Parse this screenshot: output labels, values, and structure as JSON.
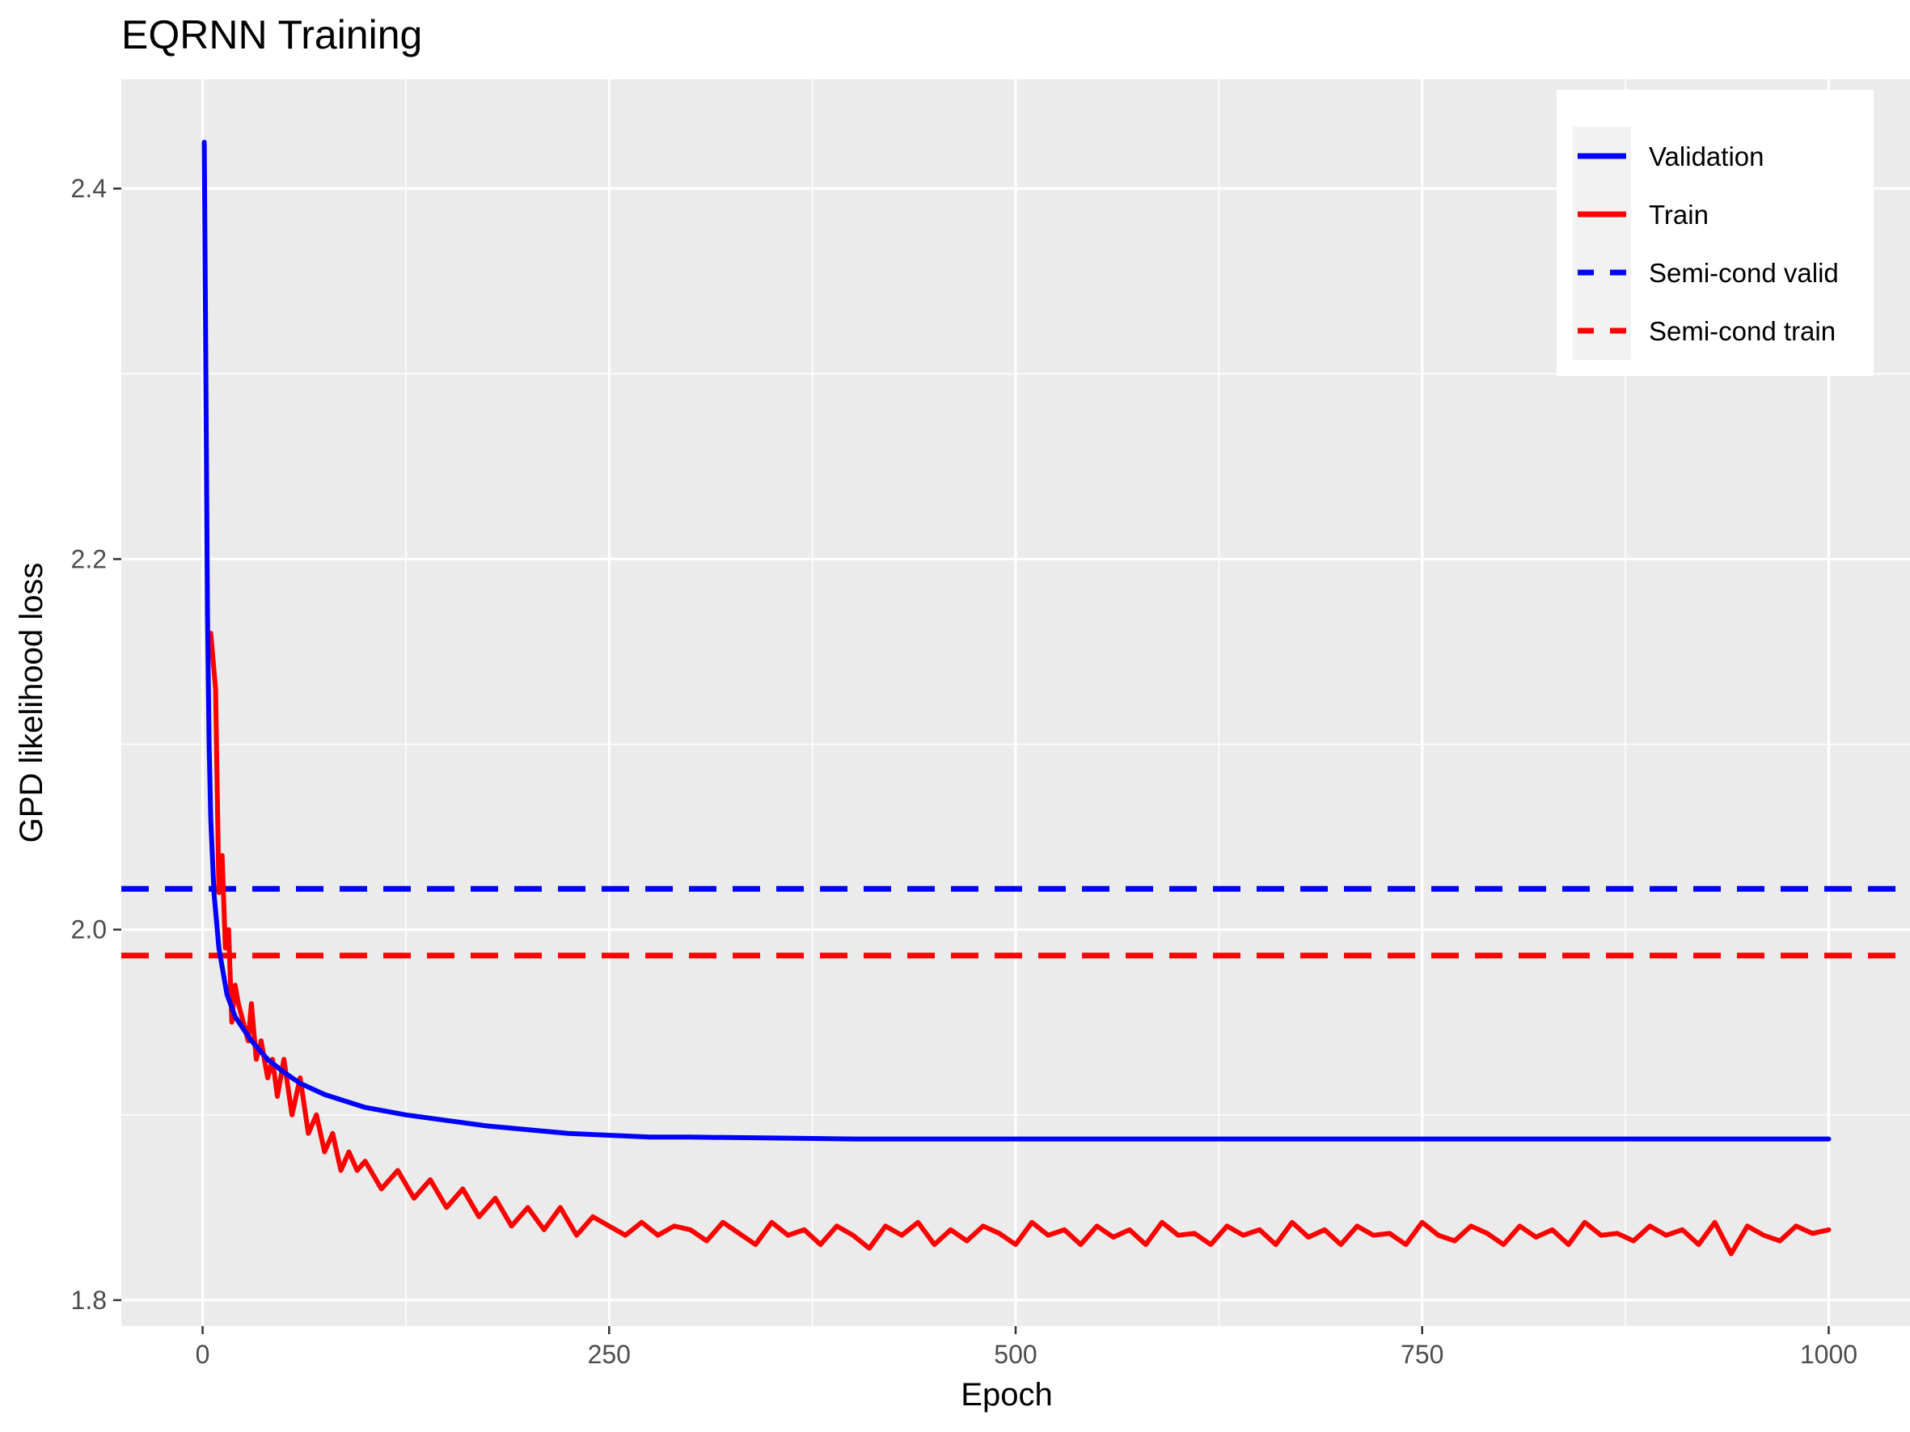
{
  "chart_data": {
    "type": "line",
    "title": "EQRNN Training",
    "xlabel": "Epoch",
    "ylabel": "GPD likelihood loss",
    "xlim": [
      -50,
      1050
    ],
    "ylim": [
      1.786,
      2.459
    ],
    "x_ticks": [
      0,
      250,
      500,
      750,
      1000
    ],
    "x_tick_labels": [
      "0",
      "250",
      "500",
      "750",
      "1000"
    ],
    "y_ticks": [
      1.8,
      2.0,
      2.2,
      2.4
    ],
    "y_tick_labels": [
      "1.8",
      "2.0",
      "2.2",
      "2.4"
    ],
    "grid": true,
    "legend_position": "top-right",
    "series": [
      {
        "name": "Validation",
        "color": "#0000ff",
        "style": "solid",
        "x": [
          1,
          2,
          3,
          4,
          5,
          7,
          10,
          15,
          20,
          30,
          40,
          50,
          60,
          75,
          100,
          125,
          150,
          175,
          200,
          225,
          250,
          275,
          300,
          350,
          400,
          450,
          500,
          600,
          700,
          800,
          900,
          1000
        ],
        "y": [
          2.425,
          2.3,
          2.17,
          2.1,
          2.06,
          2.02,
          1.99,
          1.965,
          1.953,
          1.94,
          1.93,
          1.923,
          1.917,
          1.911,
          1.904,
          1.9,
          1.897,
          1.894,
          1.892,
          1.89,
          1.889,
          1.888,
          1.888,
          1.8875,
          1.887,
          1.887,
          1.887,
          1.887,
          1.887,
          1.887,
          1.887,
          1.887
        ]
      },
      {
        "name": "Train",
        "color": "#ff0000",
        "style": "solid",
        "x": [
          5,
          8,
          10,
          12,
          14,
          16,
          18,
          20,
          22,
          25,
          28,
          30,
          33,
          36,
          40,
          43,
          46,
          50,
          55,
          60,
          65,
          70,
          75,
          80,
          85,
          90,
          95,
          100,
          110,
          120,
          130,
          140,
          150,
          160,
          170,
          180,
          190,
          200,
          210,
          220,
          230,
          240,
          250,
          260,
          270,
          280,
          290,
          300,
          310,
          320,
          330,
          340,
          350,
          360,
          370,
          380,
          390,
          400,
          410,
          420,
          430,
          440,
          450,
          460,
          470,
          480,
          490,
          500,
          510,
          520,
          530,
          540,
          550,
          560,
          570,
          580,
          590,
          600,
          610,
          620,
          630,
          640,
          650,
          660,
          670,
          680,
          690,
          700,
          710,
          720,
          730,
          740,
          750,
          760,
          770,
          780,
          790,
          800,
          810,
          820,
          830,
          840,
          850,
          860,
          870,
          880,
          890,
          900,
          910,
          920,
          930,
          940,
          950,
          960,
          970,
          980,
          990,
          1000
        ],
        "y": [
          2.16,
          2.13,
          2.02,
          2.04,
          1.99,
          2.0,
          1.95,
          1.97,
          1.96,
          1.95,
          1.94,
          1.96,
          1.93,
          1.94,
          1.92,
          1.93,
          1.91,
          1.93,
          1.9,
          1.92,
          1.89,
          1.9,
          1.88,
          1.89,
          1.87,
          1.88,
          1.87,
          1.875,
          1.86,
          1.87,
          1.855,
          1.865,
          1.85,
          1.86,
          1.845,
          1.855,
          1.84,
          1.85,
          1.838,
          1.85,
          1.835,
          1.845,
          1.84,
          1.835,
          1.842,
          1.835,
          1.84,
          1.838,
          1.832,
          1.842,
          1.836,
          1.83,
          1.842,
          1.835,
          1.838,
          1.83,
          1.84,
          1.835,
          1.828,
          1.84,
          1.835,
          1.842,
          1.83,
          1.838,
          1.832,
          1.84,
          1.836,
          1.83,
          1.842,
          1.835,
          1.838,
          1.83,
          1.84,
          1.834,
          1.838,
          1.83,
          1.842,
          1.835,
          1.836,
          1.83,
          1.84,
          1.835,
          1.838,
          1.83,
          1.842,
          1.834,
          1.838,
          1.83,
          1.84,
          1.835,
          1.836,
          1.83,
          1.842,
          1.835,
          1.832,
          1.84,
          1.836,
          1.83,
          1.84,
          1.834,
          1.838,
          1.83,
          1.842,
          1.835,
          1.836,
          1.832,
          1.84,
          1.835,
          1.838,
          1.83,
          1.842,
          1.825,
          1.84,
          1.835,
          1.832,
          1.84,
          1.836,
          1.838
        ]
      },
      {
        "name": "Semi-cond valid",
        "color": "#0000ff",
        "style": "dashed",
        "hline": 2.022
      },
      {
        "name": "Semi-cond train",
        "color": "#ff0000",
        "style": "dashed",
        "hline": 1.986
      }
    ]
  }
}
